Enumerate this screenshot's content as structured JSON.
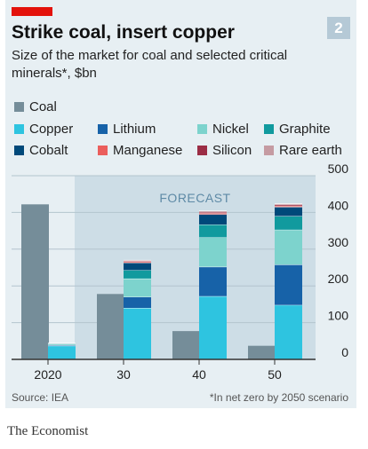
{
  "header": {
    "badge": "2",
    "title": "Strike coal, insert copper",
    "subtitle": "Size of the market for coal and selected critical minerals*, $bn"
  },
  "footer": {
    "source": "Source: IEA",
    "note": "*In net zero by 2050 scenario",
    "brand": "The Economist"
  },
  "colors": {
    "red_bar": "#e3120b",
    "panel": "#e7eff3",
    "forecast_band": "#cddde6",
    "axis": "#333333"
  },
  "chart_data": {
    "type": "bar",
    "stacked": true,
    "title": "Strike coal, insert copper",
    "subtitle": "Size of the market for coal and selected critical minerals*, $bn",
    "categories": [
      "2020",
      "30",
      "40",
      "50"
    ],
    "ylim": [
      0,
      500
    ],
    "yticks": [
      0,
      100,
      200,
      300,
      400,
      500
    ],
    "y_axis_side": "right",
    "annotation": "FORECAST",
    "forecast_region_categories": [
      "30",
      "40",
      "50"
    ],
    "legend_placement": "top",
    "coal": {
      "name": "Coal",
      "color": "#758d99",
      "values": [
        422,
        178,
        77,
        37
      ]
    },
    "minerals": [
      {
        "name": "Copper",
        "color": "#2ec4e0",
        "values": [
          37,
          140,
          172,
          148
        ]
      },
      {
        "name": "Lithium",
        "color": "#1762a8",
        "values": [
          2,
          30,
          80,
          110
        ]
      },
      {
        "name": "Nickel",
        "color": "#7dd3cd",
        "values": [
          3,
          50,
          80,
          95
        ]
      },
      {
        "name": "Graphite",
        "color": "#119a9e",
        "values": [
          1,
          23,
          35,
          37
        ]
      },
      {
        "name": "Cobalt",
        "color": "#00497a",
        "values": [
          1,
          20,
          28,
          25
        ]
      },
      {
        "name": "Manganese",
        "color": "#eb5e5c",
        "values": [
          0,
          3,
          3,
          3
        ]
      },
      {
        "name": "Silicon",
        "color": "#9b2d45",
        "values": [
          0,
          2,
          3,
          3
        ]
      },
      {
        "name": "Rare earth",
        "color": "#c59ba2",
        "values": [
          0,
          2,
          3,
          3
        ]
      }
    ]
  }
}
